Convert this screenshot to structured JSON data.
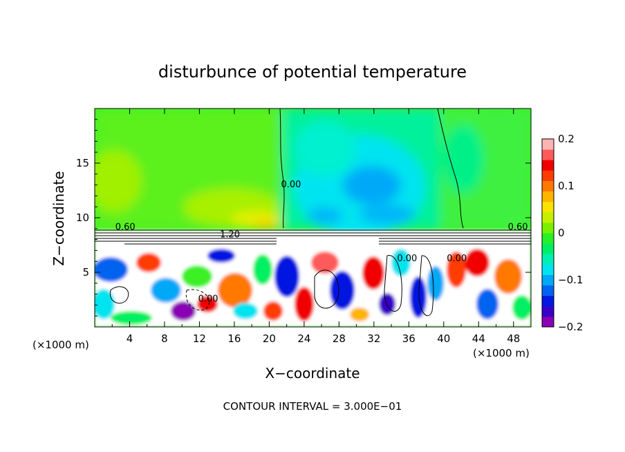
{
  "chart_data": {
    "type": "heatmap",
    "title": "disturbunce of potential temperature",
    "xlabel": "X−coordinate",
    "ylabel": "Z−coordinate",
    "x_unit_left": "(×1000 m)",
    "x_unit_right": "(×1000 m)",
    "xlim": [
      0,
      50
    ],
    "ylim": [
      0,
      20
    ],
    "x_ticks": [
      4,
      8,
      12,
      16,
      20,
      24,
      28,
      32,
      36,
      40,
      44,
      48
    ],
    "x_tick_labels": [
      "4",
      "8",
      "12",
      "16",
      "20",
      "24",
      "28",
      "32",
      "36",
      "40",
      "44",
      "48"
    ],
    "y_ticks": [
      5,
      10,
      15
    ],
    "y_tick_labels": [
      "5",
      "10",
      "15"
    ],
    "colorbar": {
      "range": [
        -0.2,
        0.2
      ],
      "tick_values": [
        0.2,
        0.1,
        0,
        -0.1,
        -0.2
      ],
      "tick_labels": [
        "0.2",
        "0.1",
        "0",
        "−0.1",
        "−0.2"
      ],
      "colors": [
        "#8a00b4",
        "#3800c8",
        "#0018e0",
        "#0064f0",
        "#00a8f8",
        "#00e4f0",
        "#00f0b4",
        "#00f064",
        "#28f028",
        "#78f000",
        "#c4f000",
        "#f8e400",
        "#ffb400",
        "#ff7800",
        "#ff3c00",
        "#f00000",
        "#ff5a5a",
        "#ffb4b4"
      ]
    },
    "contour_labels": [
      {
        "text": "0.60",
        "x": 3.5,
        "z": 8.9
      },
      {
        "text": "1.20",
        "x": 15.5,
        "z": 8.2
      },
      {
        "text": "0.00",
        "x": 22.5,
        "z": 12.8
      },
      {
        "text": "0.00",
        "x": 13.0,
        "z": 2.3
      },
      {
        "text": "0.00",
        "x": 35.8,
        "z": 6.0
      },
      {
        "text": "0.00",
        "x": 41.5,
        "z": 6.0
      },
      {
        "text": "0.60",
        "x": 48.5,
        "z": 8.9
      }
    ],
    "annotation": "CONTOUR INTERVAL = 3.000E−01"
  }
}
